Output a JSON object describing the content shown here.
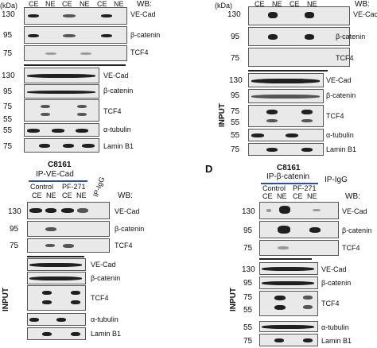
{
  "panel_a": {
    "kda": "(kDa)",
    "wb": "WB:",
    "lanes": [
      "CE",
      "NE",
      "CE",
      "NE",
      "CE",
      "NE"
    ],
    "rows": [
      {
        "mw": "130",
        "label": "VE-Cad"
      },
      {
        "mw": "95",
        "label": "β-catenin"
      },
      {
        "mw": "75",
        "label": "TCF4"
      },
      {
        "mw": "130",
        "label": "VE-Cad"
      },
      {
        "mw": "95",
        "label": "β-catenin"
      },
      {
        "mw": "75",
        "label": "TCF4"
      },
      {
        "mw": "55",
        "label": ""
      },
      {
        "mw": "55",
        "label": "α-tubulin"
      },
      {
        "mw": "75",
        "label": "Lamin B1"
      }
    ]
  },
  "panel_b": {
    "kda": "(kDa)",
    "wb": "WB:",
    "lanes": [
      "CE",
      "NE",
      "CE",
      "NE"
    ],
    "input_label": "INPUT",
    "rows": [
      {
        "mw": "130",
        "label": "VE-Cac"
      },
      {
        "mw": "95",
        "label": "β-catenin"
      },
      {
        "mw": "75",
        "label": "TCF4"
      },
      {
        "mw": "130",
        "label": "VE-Cad"
      },
      {
        "mw": "95",
        "label": "β-catenin"
      },
      {
        "mw": "75",
        "label": "TCF4"
      },
      {
        "mw": "55",
        "label": ""
      },
      {
        "mw": "55",
        "label": "α-tubulin"
      },
      {
        "mw": "75",
        "label": "Lamin B1"
      }
    ]
  },
  "panel_c": {
    "title": "C8161",
    "ip": "IP-VE-Cad",
    "control": "Control",
    "pf": "PF-271",
    "igg": "IP-IgG",
    "wb": "WB:",
    "lanes": [
      "CE",
      "NE",
      "CE",
      "NE"
    ],
    "input_label": "INPUT",
    "rows": [
      {
        "mw": "130",
        "label": "VE-Cad"
      },
      {
        "mw": "95",
        "label": "β-catenin"
      },
      {
        "mw": "75",
        "label": "TCF4"
      },
      {
        "mw": "",
        "label": "VE-Cad"
      },
      {
        "mw": "",
        "label": "β-catenin"
      },
      {
        "mw": "",
        "label": "TCF4"
      },
      {
        "mw": "",
        "label": "α-tubulin"
      },
      {
        "mw": "",
        "label": "Lamin B1"
      }
    ]
  },
  "panel_d": {
    "letter": "D",
    "title": "C8161",
    "ip": "IP-β-catenin",
    "control": "Control",
    "pf": "PF-271",
    "igg": "IP-IgG",
    "wb": "WB:",
    "lanes": [
      "CE",
      "NE",
      "CE",
      "NE"
    ],
    "input_label": "INPUT",
    "rows": [
      {
        "mw": "130",
        "label": "VE-Cad"
      },
      {
        "mw": "95",
        "label": "β-catenin"
      },
      {
        "mw": "75",
        "label": "TCF4"
      },
      {
        "mw": "130",
        "label": "VE-Cad"
      },
      {
        "mw": "95",
        "label": "β-catenin"
      },
      {
        "mw": "75",
        "label": "TCF4"
      },
      {
        "mw": "55",
        "label": ""
      },
      {
        "mw": "55",
        "label": "α-tubulin"
      },
      {
        "mw": "75",
        "label": "Lamin B1"
      }
    ]
  }
}
